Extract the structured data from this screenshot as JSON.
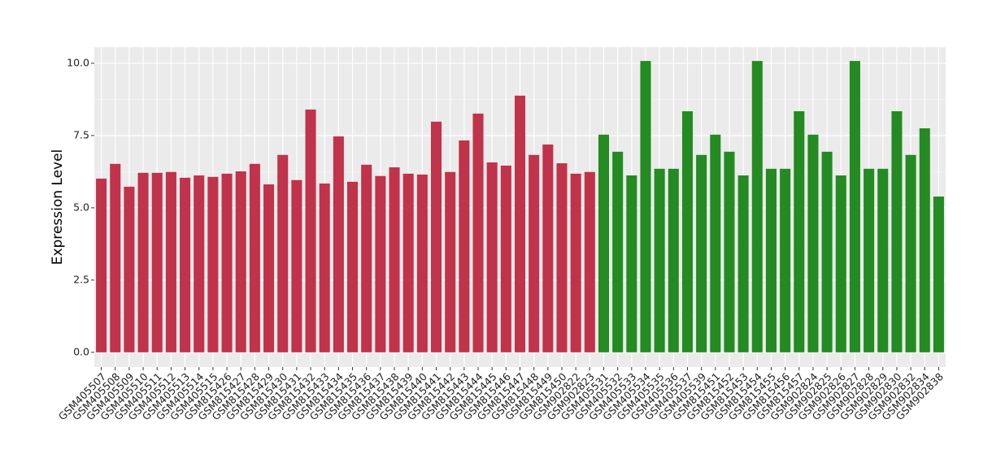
{
  "chart_data": {
    "type": "bar",
    "y_label": "Expression Level",
    "categories": [
      "GSM405507",
      "GSM405508",
      "GSM405509",
      "GSM405510",
      "GSM405511",
      "GSM405512",
      "GSM405513",
      "GSM405514",
      "GSM405515",
      "GSM815426",
      "GSM815427",
      "GSM815428",
      "GSM815429",
      "GSM815430",
      "GSM815431",
      "GSM815432",
      "GSM815433",
      "GSM815434",
      "GSM815435",
      "GSM815436",
      "GSM815437",
      "GSM815438",
      "GSM815439",
      "GSM815440",
      "GSM815441",
      "GSM815442",
      "GSM815443",
      "GSM815444",
      "GSM815445",
      "GSM815446",
      "GSM815447",
      "GSM815448",
      "GSM815449",
      "GSM815450",
      "GSM902822",
      "GSM902823",
      "GSM405531",
      "GSM405532",
      "GSM405533",
      "GSM405534",
      "GSM405535",
      "GSM405536",
      "GSM405537",
      "GSM405539",
      "GSM815451",
      "GSM815452",
      "GSM815453",
      "GSM815454",
      "GSM815455",
      "GSM815456",
      "GSM815457",
      "GSM902824",
      "GSM902825",
      "GSM902826",
      "GSM902827",
      "GSM902828",
      "GSM902829",
      "GSM902830",
      "GSM902832",
      "GSM902834",
      "GSM902838"
    ],
    "series": [
      {
        "color": "#c0334a",
        "values": [
          6.01,
          6.52,
          5.73,
          6.21,
          6.21,
          6.24,
          6.04,
          6.12,
          6.07,
          6.18,
          6.26,
          6.52,
          5.81,
          6.83,
          5.96,
          8.4,
          5.84,
          7.47,
          5.9,
          6.49,
          6.1,
          6.4,
          6.18,
          6.15,
          7.98,
          6.24,
          7.33,
          8.26,
          6.57,
          6.46,
          8.88,
          6.83,
          7.19,
          6.54,
          6.18,
          6.24,
          null,
          null,
          null,
          null,
          null,
          null,
          null,
          null,
          null,
          null,
          null,
          null,
          null,
          null,
          null,
          null,
          null,
          null,
          null,
          null,
          null,
          null,
          null,
          null,
          null
        ]
      },
      {
        "color": "#238b22",
        "values": [
          null,
          null,
          null,
          null,
          null,
          null,
          null,
          null,
          null,
          null,
          null,
          null,
          null,
          null,
          null,
          null,
          null,
          null,
          null,
          null,
          null,
          null,
          null,
          null,
          null,
          null,
          null,
          null,
          null,
          null,
          null,
          null,
          null,
          null,
          null,
          null,
          7.53,
          6.94,
          6.12,
          10.08,
          6.35,
          6.35,
          8.34,
          6.83,
          7.53,
          6.94,
          6.12,
          10.08,
          6.35,
          6.35,
          8.34,
          7.53,
          6.94,
          6.12,
          10.08,
          6.35,
          6.35,
          8.34,
          6.83,
          7.75,
          5.39
        ]
      }
    ],
    "ylim": [
      -0.51,
      10.56
    ],
    "yticks": [
      {
        "value": 0,
        "label": "0.0"
      },
      {
        "value": 2.5,
        "label": "2.5"
      },
      {
        "value": 5,
        "label": "5.0"
      },
      {
        "value": 7.5,
        "label": "7.5"
      },
      {
        "value": 10,
        "label": "10.0"
      }
    ],
    "grid": true
  }
}
